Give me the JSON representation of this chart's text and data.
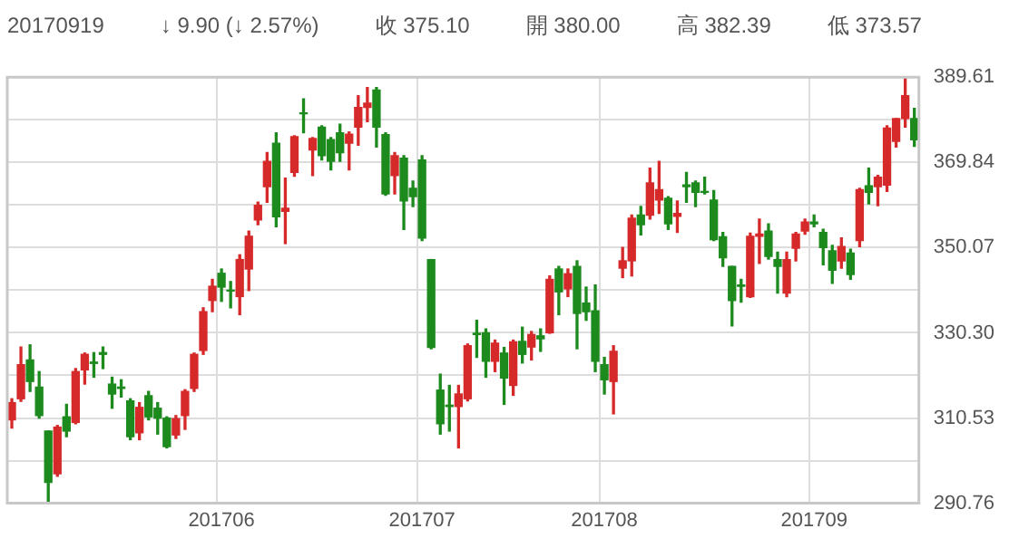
{
  "chart_data": {
    "type": "candlestick",
    "annotations": [
      "20170919",
      "↓ 9.90 (↓ 2.57%)",
      "收 375.10",
      "開 380.00",
      "高 382.39",
      "低 373.57"
    ],
    "categories": [
      null,
      null,
      null,
      null,
      null,
      null,
      null,
      null,
      null,
      null,
      null,
      null,
      null,
      null,
      null,
      null,
      null,
      null,
      null,
      null,
      null,
      null,
      null,
      "201706",
      null,
      null,
      null,
      null,
      null,
      null,
      null,
      null,
      null,
      null,
      null,
      null,
      null,
      null,
      null,
      null,
      null,
      null,
      null,
      null,
      null,
      "201707",
      null,
      null,
      null,
      null,
      null,
      null,
      null,
      null,
      null,
      null,
      null,
      null,
      null,
      null,
      null,
      null,
      null,
      null,
      null,
      "201708",
      null,
      null,
      null,
      null,
      null,
      null,
      null,
      null,
      null,
      null,
      null,
      null,
      null,
      null,
      null,
      null,
      null,
      null,
      null,
      null,
      null,
      null,
      "201709",
      null,
      null,
      null,
      null,
      null,
      null,
      null,
      null,
      null,
      null,
      null
    ],
    "ohlc": [
      [
        310.1,
        315.0,
        308.2,
        314.1
      ],
      [
        315.0,
        327.0,
        314.4,
        322.9
      ],
      [
        324.0,
        327.5,
        316.7,
        319.0
      ],
      [
        317.7,
        321.3,
        310.5,
        311.1
      ],
      [
        307.5,
        307.5,
        291.0,
        295.6
      ],
      [
        297.6,
        308.8,
        297.0,
        308.4
      ],
      [
        310.8,
        313.7,
        306.2,
        307.5
      ],
      [
        309.5,
        322.0,
        309.2,
        321.3
      ],
      [
        321.7,
        325.6,
        318.4,
        325.3
      ],
      [
        323.5,
        325.7,
        320.0,
        323.2
      ],
      [
        325.7,
        327.0,
        322.0,
        325.3
      ],
      [
        318.4,
        320.0,
        312.8,
        316.1
      ],
      [
        317.7,
        319.4,
        315.4,
        317.4
      ],
      [
        314.5,
        315.0,
        305.5,
        306.2
      ],
      [
        307.1,
        314.1,
        305.5,
        313.0
      ],
      [
        315.7,
        316.7,
        310.1,
        310.8
      ],
      [
        312.8,
        314.1,
        306.8,
        310.5
      ],
      [
        310.5,
        310.8,
        303.6,
        303.9
      ],
      [
        306.6,
        311.1,
        305.8,
        310.4
      ],
      [
        311.1,
        317.1,
        307.9,
        316.7
      ],
      [
        317.4,
        325.6,
        316.7,
        325.3
      ],
      [
        326.2,
        336.1,
        325.3,
        335.2
      ],
      [
        337.8,
        342.7,
        335.2,
        341.1
      ],
      [
        344.1,
        345.1,
        337.6,
        340.9
      ],
      [
        340.2,
        342.2,
        336.1,
        340.0
      ],
      [
        338.7,
        348.4,
        334.5,
        347.3
      ],
      [
        345.1,
        353.9,
        340.1,
        352.7
      ],
      [
        356.5,
        360.6,
        355.4,
        359.9
      ],
      [
        364.2,
        372.1,
        360.6,
        370.1
      ],
      [
        374.3,
        376.7,
        354.9,
        357.2
      ],
      [
        358.5,
        366.2,
        351.0,
        359.2
      ],
      [
        367.5,
        376.0,
        366.6,
        375.8
      ],
      [
        381.3,
        384.6,
        376.7,
        381.1
      ],
      [
        372.7,
        375.6,
        366.8,
        375.4
      ],
      [
        378.0,
        378.3,
        370.4,
        371.4
      ],
      [
        375.1,
        375.6,
        368.1,
        370.1
      ],
      [
        376.7,
        378.7,
        370.1,
        372.1
      ],
      [
        374.3,
        376.9,
        368.1,
        376.4
      ],
      [
        378.0,
        385.3,
        373.8,
        382.6
      ],
      [
        382.6,
        387.2,
        379.3,
        383.6
      ],
      [
        386.6,
        387.2,
        373.4,
        378.0
      ],
      [
        376.3,
        376.7,
        362.2,
        362.5
      ],
      [
        366.8,
        372.1,
        362.5,
        371.4
      ],
      [
        370.8,
        371.4,
        354.3,
        360.9
      ],
      [
        363.8,
        365.5,
        359.6,
        361.9
      ],
      [
        370.4,
        371.4,
        351.7,
        352.3
      ],
      [
        347.3,
        347.3,
        326.6,
        326.9
      ],
      [
        317.0,
        320.7,
        306.8,
        309.2
      ],
      [
        313.5,
        318.1,
        307.5,
        313.2
      ],
      [
        313.2,
        318.1,
        303.6,
        316.1
      ],
      [
        315.0,
        327.7,
        314.5,
        327.3
      ],
      [
        330.2,
        333.2,
        324.6,
        329.9
      ],
      [
        330.3,
        331.2,
        320.0,
        323.7
      ],
      [
        323.7,
        328.6,
        321.3,
        327.9
      ],
      [
        325.6,
        326.9,
        313.7,
        319.8
      ],
      [
        318.1,
        328.6,
        315.8,
        328.2
      ],
      [
        328.3,
        331.6,
        323.3,
        325.3
      ],
      [
        327.0,
        330.6,
        324.0,
        329.9
      ],
      [
        329.6,
        331.2,
        326.0,
        328.9
      ],
      [
        330.3,
        343.5,
        330.2,
        342.7
      ],
      [
        345.1,
        345.7,
        334.5,
        339.8
      ],
      [
        340.5,
        345.1,
        338.7,
        344.0
      ],
      [
        345.7,
        347.0,
        326.6,
        334.8
      ],
      [
        337.2,
        340.9,
        333.2,
        335.2
      ],
      [
        335.4,
        341.4,
        321.3,
        323.7
      ],
      [
        322.9,
        324.6,
        316.1,
        319.4
      ],
      [
        319.0,
        327.3,
        311.5,
        326.0
      ],
      [
        345.3,
        350.1,
        343.1,
        347.0
      ],
      [
        347.0,
        357.6,
        343.5,
        356.9
      ],
      [
        357.6,
        359.6,
        353.0,
        355.4
      ],
      [
        357.6,
        368.5,
        356.7,
        365.1
      ],
      [
        361.1,
        370.1,
        358.0,
        363.5
      ],
      [
        361.5,
        361.9,
        354.3,
        355.6
      ],
      [
        357.3,
        360.9,
        353.6,
        358.0
      ],
      [
        364.6,
        367.5,
        360.6,
        364.2
      ],
      [
        365.1,
        365.5,
        359.6,
        362.9
      ],
      [
        363.1,
        366.4,
        362.5,
        362.9
      ],
      [
        361.1,
        363.3,
        351.7,
        351.9
      ],
      [
        352.6,
        353.6,
        345.7,
        347.7
      ],
      [
        345.7,
        345.7,
        331.9,
        337.8
      ],
      [
        341.4,
        342.7,
        337.4,
        341.1
      ],
      [
        338.7,
        353.4,
        338.5,
        352.7
      ],
      [
        352.7,
        356.7,
        346.4,
        353.2
      ],
      [
        353.9,
        355.6,
        347.4,
        348.0
      ],
      [
        347.3,
        349.0,
        339.5,
        345.7
      ],
      [
        339.5,
        349.0,
        338.7,
        347.3
      ],
      [
        349.9,
        353.6,
        347.0,
        353.2
      ],
      [
        353.9,
        356.7,
        353.2,
        356.0
      ],
      [
        356.0,
        357.6,
        354.9,
        355.6
      ],
      [
        353.6,
        354.3,
        346.1,
        350.1
      ],
      [
        349.3,
        350.6,
        341.8,
        344.8
      ],
      [
        347.0,
        352.3,
        345.3,
        350.3
      ],
      [
        348.8,
        349.7,
        342.7,
        343.8
      ],
      [
        351.7,
        363.8,
        350.3,
        363.5
      ],
      [
        364.4,
        368.5,
        360.2,
        362.9
      ],
      [
        364.2,
        366.8,
        359.8,
        366.4
      ],
      [
        364.6,
        378.3,
        363.1,
        377.8
      ],
      [
        374.7,
        380.0,
        373.4,
        380.0
      ],
      [
        380.0,
        389.6,
        378.0,
        385.3
      ],
      [
        380.0,
        382.39,
        373.57,
        375.1
      ]
    ],
    "colors": [
      "#d62a2a",
      "#d62a2a",
      "#1d8a1d",
      "#1d8a1d",
      "#1d8a1d",
      "#d62a2a",
      "#1d8a1d",
      "#d62a2a",
      "#d62a2a",
      "#1d8a1d",
      "#1d8a1d",
      "#1d8a1d",
      "#1d8a1d",
      "#1d8a1d",
      "#d62a2a",
      "#1d8a1d",
      "#1d8a1d",
      "#1d8a1d",
      "#d62a2a",
      "#d62a2a",
      "#d62a2a",
      "#d62a2a",
      "#d62a2a",
      "#1d8a1d",
      "#1d8a1d",
      "#d62a2a",
      "#d62a2a",
      "#d62a2a",
      "#d62a2a",
      "#1d8a1d",
      "#d62a2a",
      "#d62a2a",
      "#1d8a1d",
      "#d62a2a",
      "#1d8a1d",
      "#1d8a1d",
      "#1d8a1d",
      "#d62a2a",
      "#d62a2a",
      "#d62a2a",
      "#1d8a1d",
      "#1d8a1d",
      "#d62a2a",
      "#1d8a1d",
      "#1d8a1d",
      "#1d8a1d",
      "#1d8a1d",
      "#1d8a1d",
      "#1d8a1d",
      "#d62a2a",
      "#d62a2a",
      "#1d8a1d",
      "#1d8a1d",
      "#d62a2a",
      "#1d8a1d",
      "#d62a2a",
      "#1d8a1d",
      "#d62a2a",
      "#1d8a1d",
      "#d62a2a",
      "#1d8a1d",
      "#d62a2a",
      "#1d8a1d",
      "#1d8a1d",
      "#1d8a1d",
      "#1d8a1d",
      "#d62a2a",
      "#d62a2a",
      "#d62a2a",
      "#1d8a1d",
      "#d62a2a",
      "#d62a2a",
      "#1d8a1d",
      "#d62a2a",
      "#1d8a1d",
      "#1d8a1d",
      "#1d8a1d",
      "#1d8a1d",
      "#1d8a1d",
      "#1d8a1d",
      "#1d8a1d",
      "#d62a2a",
      "#d62a2a",
      "#1d8a1d",
      "#1d8a1d",
      "#d62a2a",
      "#d62a2a",
      "#d62a2a",
      "#1d8a1d",
      "#1d8a1d",
      "#1d8a1d",
      "#d62a2a",
      "#1d8a1d",
      "#d62a2a",
      "#1d8a1d",
      "#d62a2a",
      "#d62a2a",
      "#d62a2a",
      "#d62a2a",
      "#1d8a1d"
    ],
    "ylim": [
      290.76,
      389.61
    ],
    "yticks": [
      290.76,
      {
        "value": 300.645,
        "label": null
      },
      310.53,
      {
        "value": 320.415,
        "label": null
      },
      {
        "value": 330.3,
        "label": "330.30"
      },
      {
        "value": 340.185,
        "label": null
      },
      350.07,
      {
        "value": 359.955,
        "label": null
      },
      369.84,
      {
        "value": 379.725,
        "label": null
      },
      389.61
    ],
    "grid": true,
    "legend": false
  }
}
